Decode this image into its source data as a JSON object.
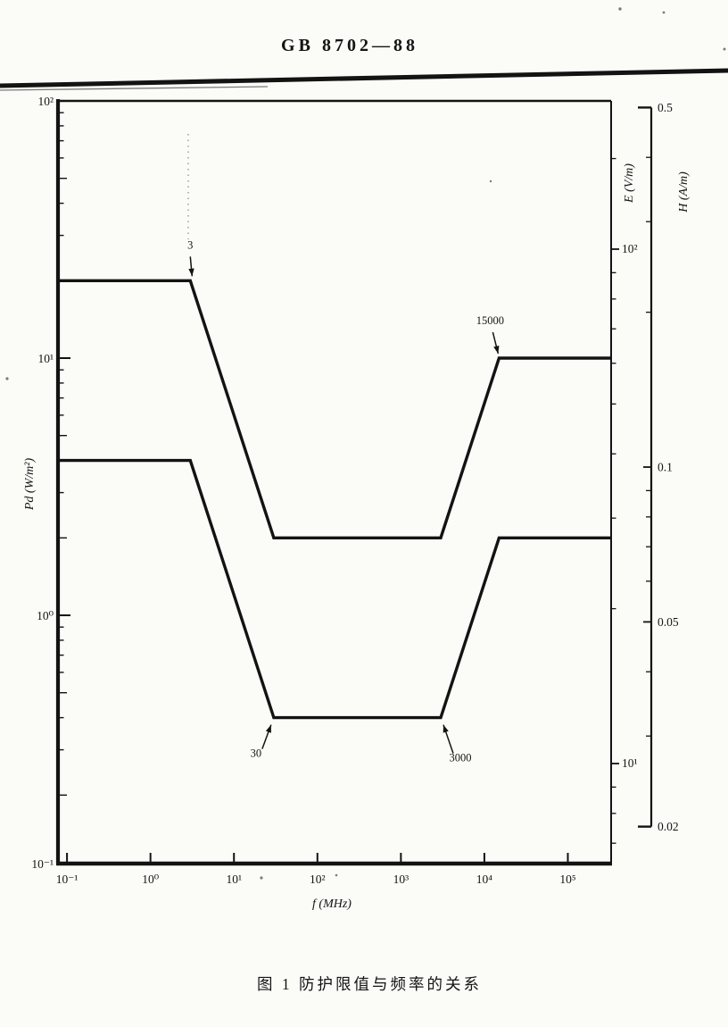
{
  "page": {
    "header": "GB 8702—88",
    "caption": "图 1  防护限值与频率的关系"
  },
  "chart_data": {
    "type": "line",
    "title": "图 1  防护限值与频率的关系",
    "grid": false,
    "legend": "none",
    "x_axis": {
      "label": "f (MHz)",
      "scale": "log",
      "range_mhz": [
        0.078,
        330000
      ],
      "ticks": [
        {
          "value": 0.1,
          "label": "10⁻¹"
        },
        {
          "value": 1,
          "label": "10⁰"
        },
        {
          "value": 10,
          "label": "10¹"
        },
        {
          "value": 100,
          "label": "10²"
        },
        {
          "value": 1000,
          "label": "10³"
        },
        {
          "value": 10000,
          "label": "10⁴"
        },
        {
          "value": 100000,
          "label": "10⁵"
        }
      ]
    },
    "y_axis_power_density": {
      "label": "Pd (W/m²)",
      "scale": "log",
      "range": [
        0.1,
        100
      ],
      "ticks": [
        {
          "value": 100,
          "label": "10²"
        },
        {
          "value": 10,
          "label": "10¹"
        },
        {
          "value": 1,
          "label": "10⁰"
        },
        {
          "value": 0.1,
          "label": "10⁻¹"
        }
      ],
      "minor_ticks": [
        0.2,
        0.3,
        0.4,
        0.5,
        0.6,
        0.7,
        0.8,
        0.9,
        2,
        3,
        4,
        5,
        6,
        7,
        8,
        9,
        20,
        30,
        40,
        50,
        60,
        70,
        80,
        90
      ]
    },
    "y_axis_electric_field": {
      "label": "E (V/m)",
      "scale": "log",
      "ticks": [
        {
          "value": 100,
          "label": "10²"
        },
        {
          "value": 10,
          "label": "10¹"
        }
      ],
      "minor_ticks": [
        7,
        8,
        9,
        20,
        30,
        40,
        50,
        60,
        70,
        80,
        90,
        150
      ]
    },
    "y_axis_magnetic_field": {
      "label": "H (A/m)",
      "scale": "log",
      "ticks": [
        {
          "value": 0.5,
          "label": "0.5"
        },
        {
          "value": 0.1,
          "label": "0.1"
        },
        {
          "value": 0.05,
          "label": "0.05"
        },
        {
          "value": 0.02,
          "label": "0.02"
        }
      ],
      "minor_ticks": [
        0.4,
        0.3,
        0.2,
        0.09,
        0.08,
        0.07,
        0.06,
        0.04,
        0.03
      ]
    },
    "series": [
      {
        "name": "upper",
        "points_f_mhz_pd": [
          [
            0.078,
            20
          ],
          [
            3,
            20
          ],
          [
            30,
            2
          ],
          [
            3000,
            2
          ],
          [
            15000,
            10
          ],
          [
            330000,
            10
          ]
        ]
      },
      {
        "name": "lower",
        "points_f_mhz_pd": [
          [
            0.078,
            4
          ],
          [
            3,
            4
          ],
          [
            30,
            0.4
          ],
          [
            3000,
            0.4
          ],
          [
            15000,
            2
          ],
          [
            330000,
            2
          ]
        ]
      }
    ],
    "annotations": [
      {
        "label": "3",
        "f_mhz": 3,
        "pd": 20,
        "placement": "above"
      },
      {
        "label": "15000",
        "f_mhz": 15000,
        "pd": 10,
        "placement": "above-left"
      },
      {
        "label": "30",
        "f_mhz": 30,
        "pd": 0.4,
        "placement": "below-left"
      },
      {
        "label": "3000",
        "f_mhz": 3000,
        "pd": 0.4,
        "placement": "below-right"
      }
    ]
  }
}
